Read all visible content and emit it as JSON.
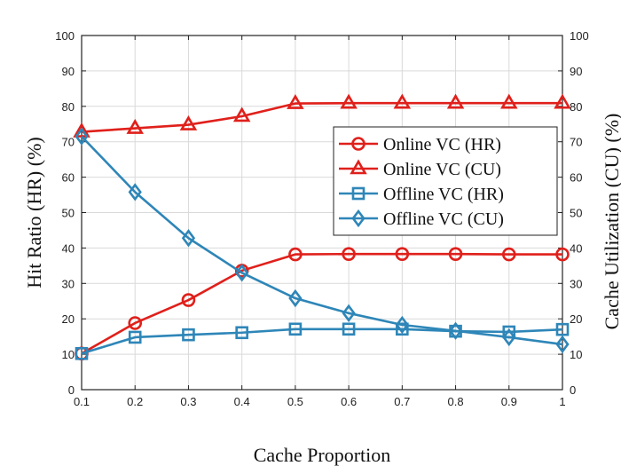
{
  "chart_data": {
    "type": "line",
    "x": [
      0.1,
      0.2,
      0.3,
      0.4,
      0.5,
      0.6,
      0.7,
      0.8,
      0.9,
      1
    ],
    "x_tick_labels": [
      "0.1",
      "0.2",
      "0.3",
      "0.4",
      "0.5",
      "0.6",
      "0.7",
      "0.8",
      "0.9",
      "1"
    ],
    "y_tick_labels": [
      "0",
      "10",
      "20",
      "30",
      "40",
      "50",
      "60",
      "70",
      "80",
      "90",
      "100"
    ],
    "xlabel": "Cache Proportion",
    "ylabel": "Hit Ratio (HR) (%)",
    "y2label": "Cache Utilization (CU) (%)",
    "xlim": [
      0.1,
      1
    ],
    "ylim": [
      0,
      100
    ],
    "y2lim": [
      0,
      100
    ],
    "grid": true,
    "legend_position": "right",
    "series": [
      {
        "name": "Online VC (HR)",
        "marker": "circle",
        "color": "#e0201b",
        "axis": "left",
        "values": [
          10.2,
          18.8,
          25.3,
          33.6,
          38.2,
          38.3,
          38.3,
          38.3,
          38.2,
          38.2
        ]
      },
      {
        "name": "Online VC (CU)",
        "marker": "triangle",
        "color": "#e0201b",
        "axis": "right",
        "values": [
          72.8,
          73.8,
          74.8,
          77.2,
          80.8,
          80.9,
          80.9,
          80.9,
          80.9,
          80.9
        ]
      },
      {
        "name": "Offline VC (HR)",
        "marker": "square",
        "color": "#2e86b8",
        "axis": "left",
        "values": [
          10.2,
          14.8,
          15.5,
          16.1,
          17.1,
          17.1,
          17.1,
          16.5,
          16.3,
          17.0
        ]
      },
      {
        "name": "Offline VC (CU)",
        "marker": "diamond",
        "color": "#2e86b8",
        "axis": "right",
        "values": [
          71.5,
          55.8,
          42.8,
          33.0,
          25.8,
          21.6,
          18.3,
          16.6,
          14.8,
          12.8
        ]
      }
    ]
  }
}
